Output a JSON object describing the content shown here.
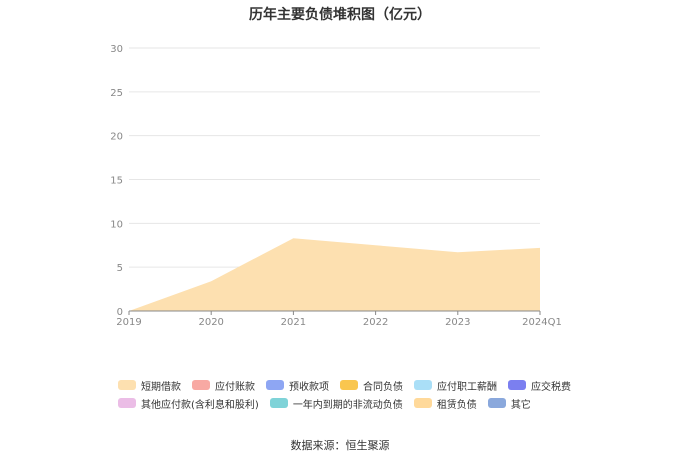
{
  "chart_data": {
    "type": "area",
    "title": "历年主要负债堆积图（亿元）",
    "categories": [
      "2019",
      "2020",
      "2021",
      "2022",
      "2023",
      "2024Q1"
    ],
    "ylim": [
      0,
      30
    ],
    "yticks": [
      "0",
      "5",
      "10",
      "15",
      "20",
      "25",
      "30"
    ],
    "grid": true,
    "legend_position": "bottom",
    "stacked": true,
    "series": [
      {
        "name": "短期借款",
        "color": "#fde0b0",
        "values": [
          0.0,
          3.4,
          8.3,
          7.5,
          6.7,
          7.2
        ]
      },
      {
        "name": "应付账款",
        "color": "#f8a9a3",
        "values": [
          0.0,
          0.0,
          0.0,
          0.0,
          0.0,
          0.0
        ]
      },
      {
        "name": "预收款项",
        "color": "#8ea6f3",
        "values": [
          0.0,
          0.0,
          0.0,
          0.0,
          0.0,
          0.0
        ]
      },
      {
        "name": "合同负债",
        "color": "#f9c64f",
        "values": [
          0.0,
          0.0,
          0.0,
          0.0,
          0.0,
          0.0
        ]
      },
      {
        "name": "应付职工薪酬",
        "color": "#aadff7",
        "values": [
          0.0,
          0.0,
          0.0,
          0.0,
          0.0,
          0.0
        ]
      },
      {
        "name": "应交税费",
        "color": "#7b7ff0",
        "values": [
          0.0,
          0.0,
          0.0,
          0.0,
          0.0,
          0.0
        ]
      },
      {
        "name": "其他应付款(含利息和股利)",
        "color": "#ebbde6",
        "values": [
          0.0,
          0.0,
          0.0,
          0.0,
          0.0,
          0.0
        ]
      },
      {
        "name": "一年内到期的非流动负债",
        "color": "#7fd3d8",
        "values": [
          0.0,
          0.0,
          0.0,
          0.0,
          0.0,
          0.0
        ]
      },
      {
        "name": "租赁负债",
        "color": "#ffd99a",
        "values": [
          0.0,
          0.0,
          0.0,
          0.0,
          0.0,
          0.0
        ]
      },
      {
        "name": "其它",
        "color": "#8aa8dc",
        "values": [
          0.0,
          0.0,
          0.0,
          0.0,
          0.0,
          0.0
        ]
      }
    ]
  },
  "source": "数据来源：恒生聚源"
}
